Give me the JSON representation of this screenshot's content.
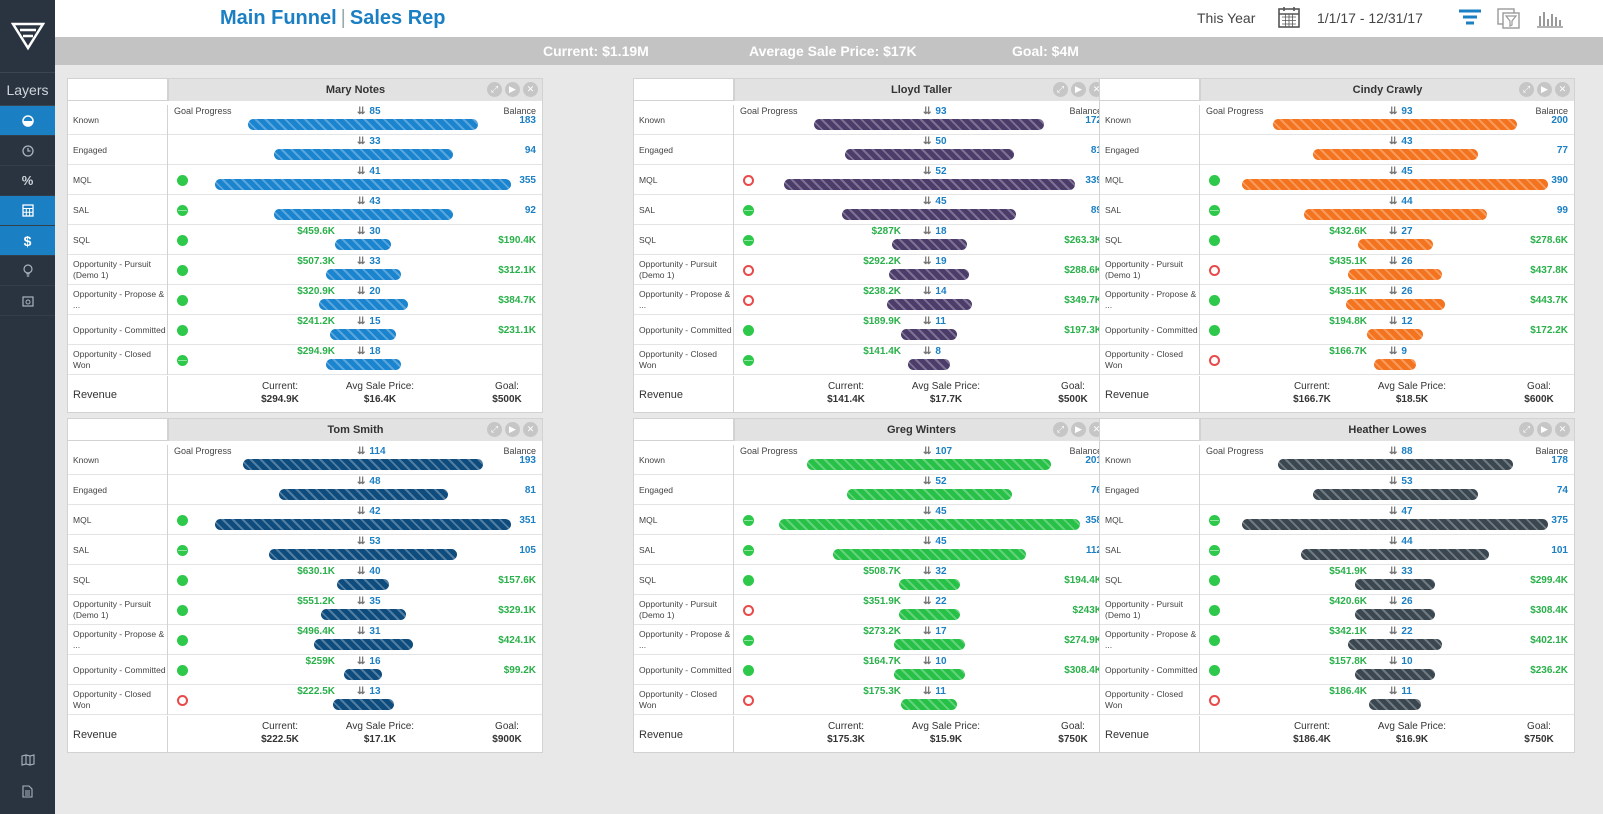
{
  "header": {
    "title_main": "Main Funnel",
    "title_sep": "|",
    "title_sub": "Sales Rep",
    "period": "This Year",
    "date_range": "1/1/17 - 12/31/17"
  },
  "sidebar": {
    "layers_label": "Layers"
  },
  "summary": {
    "current": "Current: $1.19M",
    "avg": "Average Sale Price: $17K",
    "goal": "Goal: $4M"
  },
  "labels": {
    "goal_progress": "Goal Progress",
    "balance": "Balance",
    "revenue": "Revenue",
    "current": "Current:",
    "avg_sale": "Avg Sale Price:",
    "goal": "Goal:",
    "stages": [
      "Known",
      "Engaged",
      "MQL",
      "SAL",
      "SQL",
      "Opportunity - Pursuit (Demo 1)",
      "Opportunity - Propose & ...",
      "Opportunity - Committed",
      "Opportunity - Closed Won"
    ]
  },
  "panels": [
    {
      "name": "Mary Notes",
      "color": "#1b84cf",
      "rows": [
        {
          "count": "85",
          "value": "",
          "balance": "183",
          "status": "none",
          "width": 0.49
        },
        {
          "count": "33",
          "value": "",
          "balance": "94",
          "status": "none",
          "width": 0.38
        },
        {
          "count": "41",
          "value": "",
          "balance": "355",
          "status": "green",
          "width": 0.63
        },
        {
          "count": "43",
          "value": "",
          "balance": "92",
          "status": "half",
          "width": 0.38
        },
        {
          "count": "30",
          "value": "$459.6K",
          "balance": "$190.4K",
          "status": "green",
          "width": 0.12
        },
        {
          "count": "33",
          "value": "$507.3K",
          "balance": "$312.1K",
          "status": "green",
          "width": 0.16
        },
        {
          "count": "20",
          "value": "$320.9K",
          "balance": "$384.7K",
          "status": "green",
          "width": 0.19
        },
        {
          "count": "15",
          "value": "$241.2K",
          "balance": "$231.1K",
          "status": "green",
          "width": 0.14
        },
        {
          "count": "18",
          "value": "$294.9K",
          "balance": "",
          "status": "half",
          "width": 0.16
        }
      ],
      "revenue": {
        "current": "$294.9K",
        "avg": "$16.4K",
        "goal": "$500K"
      }
    },
    {
      "name": "Lloyd Taller",
      "color": "#4b3c6a",
      "rows": [
        {
          "count": "93",
          "value": "",
          "balance": "172",
          "status": "none",
          "width": 0.49
        },
        {
          "count": "50",
          "value": "",
          "balance": "81",
          "status": "none",
          "width": 0.36
        },
        {
          "count": "52",
          "value": "",
          "balance": "339",
          "status": "red",
          "width": 0.62
        },
        {
          "count": "45",
          "value": "",
          "balance": "89",
          "status": "half",
          "width": 0.37
        },
        {
          "count": "18",
          "value": "$287K",
          "balance": "$263.3K",
          "status": "half",
          "width": 0.16
        },
        {
          "count": "19",
          "value": "$292.2K",
          "balance": "$288.6K",
          "status": "red",
          "width": 0.17
        },
        {
          "count": "14",
          "value": "$238.2K",
          "balance": "$349.7K",
          "status": "red",
          "width": 0.18
        },
        {
          "count": "11",
          "value": "$189.9K",
          "balance": "$197.3K",
          "status": "green",
          "width": 0.12
        },
        {
          "count": "8",
          "value": "$141.4K",
          "balance": "",
          "status": "half",
          "width": 0.09
        }
      ],
      "revenue": {
        "current": "$141.4K",
        "avg": "$17.7K",
        "goal": "$500K"
      }
    },
    {
      "name": "Cindy Crawly",
      "color": "#f4731f",
      "rows": [
        {
          "count": "93",
          "value": "",
          "balance": "200",
          "status": "none",
          "width": 0.52
        },
        {
          "count": "43",
          "value": "",
          "balance": "77",
          "status": "none",
          "width": 0.35
        },
        {
          "count": "45",
          "value": "",
          "balance": "390",
          "status": "green",
          "width": 0.65
        },
        {
          "count": "44",
          "value": "",
          "balance": "99",
          "status": "half",
          "width": 0.39
        },
        {
          "count": "27",
          "value": "$432.6K",
          "balance": "$278.6K",
          "status": "green",
          "width": 0.16
        },
        {
          "count": "26",
          "value": "$435.1K",
          "balance": "$437.8K",
          "status": "red",
          "width": 0.2
        },
        {
          "count": "26",
          "value": "$435.1K",
          "balance": "$443.7K",
          "status": "green",
          "width": 0.21
        },
        {
          "count": "12",
          "value": "$194.8K",
          "balance": "$172.2K",
          "status": "green",
          "width": 0.12
        },
        {
          "count": "9",
          "value": "$166.7K",
          "balance": "",
          "status": "red",
          "width": 0.09
        }
      ],
      "revenue": {
        "current": "$166.7K",
        "avg": "$18.5K",
        "goal": "$600K"
      }
    },
    {
      "name": "Tom Smith",
      "color": "#0f4c7e",
      "rows": [
        {
          "count": "114",
          "value": "",
          "balance": "193",
          "status": "none",
          "width": 0.51
        },
        {
          "count": "48",
          "value": "",
          "balance": "81",
          "status": "none",
          "width": 0.36
        },
        {
          "count": "42",
          "value": "",
          "balance": "351",
          "status": "green",
          "width": 0.63
        },
        {
          "count": "53",
          "value": "",
          "balance": "105",
          "status": "half",
          "width": 0.4
        },
        {
          "count": "40",
          "value": "$630.1K",
          "balance": "$157.6K",
          "status": "green",
          "width": 0.11
        },
        {
          "count": "35",
          "value": "$551.2K",
          "balance": "$329.1K",
          "status": "green",
          "width": 0.18
        },
        {
          "count": "31",
          "value": "$496.4K",
          "balance": "$424.1K",
          "status": "green",
          "width": 0.21
        },
        {
          "count": "16",
          "value": "$259K",
          "balance": "$99.2K",
          "status": "green",
          "width": 0.08
        },
        {
          "count": "13",
          "value": "$222.5K",
          "balance": "",
          "status": "red",
          "width": 0.13
        }
      ],
      "revenue": {
        "current": "$222.5K",
        "avg": "$17.1K",
        "goal": "$900K"
      }
    },
    {
      "name": "Greg Winters",
      "color": "#27c148",
      "rows": [
        {
          "count": "107",
          "value": "",
          "balance": "201",
          "status": "none",
          "width": 0.52
        },
        {
          "count": "52",
          "value": "",
          "balance": "76",
          "status": "none",
          "width": 0.35
        },
        {
          "count": "45",
          "value": "",
          "balance": "358",
          "status": "half",
          "width": 0.64
        },
        {
          "count": "45",
          "value": "",
          "balance": "112",
          "status": "half",
          "width": 0.41
        },
        {
          "count": "32",
          "value": "$508.7K",
          "balance": "$194.4K",
          "status": "green",
          "width": 0.13
        },
        {
          "count": "22",
          "value": "$351.9K",
          "balance": "$243K",
          "status": "red",
          "width": 0.13
        },
        {
          "count": "17",
          "value": "$273.2K",
          "balance": "$274.9K",
          "status": "half",
          "width": 0.15
        },
        {
          "count": "10",
          "value": "$164.7K",
          "balance": "$308.4K",
          "status": "green",
          "width": 0.15
        },
        {
          "count": "11",
          "value": "$175.3K",
          "balance": "",
          "status": "red",
          "width": 0.12
        }
      ],
      "revenue": {
        "current": "$175.3K",
        "avg": "$15.9K",
        "goal": "$750K"
      }
    },
    {
      "name": "Heather Lowes",
      "color": "#3a4750",
      "rows": [
        {
          "count": "88",
          "value": "",
          "balance": "178",
          "status": "none",
          "width": 0.5
        },
        {
          "count": "53",
          "value": "",
          "balance": "74",
          "status": "none",
          "width": 0.35
        },
        {
          "count": "47",
          "value": "",
          "balance": "375",
          "status": "half",
          "width": 0.65
        },
        {
          "count": "44",
          "value": "",
          "balance": "101",
          "status": "half",
          "width": 0.4
        },
        {
          "count": "33",
          "value": "$541.9K",
          "balance": "$299.4K",
          "status": "green",
          "width": 0.17
        },
        {
          "count": "26",
          "value": "$420.6K",
          "balance": "$308.4K",
          "status": "green",
          "width": 0.17
        },
        {
          "count": "22",
          "value": "$342.1K",
          "balance": "$402.1K",
          "status": "green",
          "width": 0.2
        },
        {
          "count": "10",
          "value": "$157.8K",
          "balance": "$236.2K",
          "status": "green",
          "width": 0.17
        },
        {
          "count": "11",
          "value": "$186.4K",
          "balance": "",
          "status": "red",
          "width": 0.11
        }
      ],
      "revenue": {
        "current": "$186.4K",
        "avg": "$16.9K",
        "goal": "$750K"
      }
    }
  ]
}
